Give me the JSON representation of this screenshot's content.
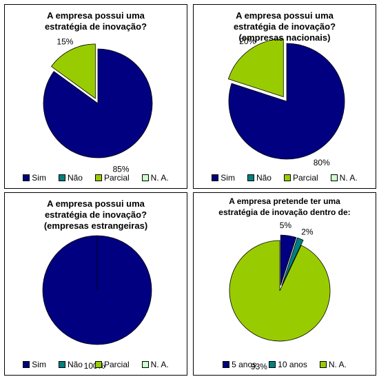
{
  "chart_data": [
    {
      "type": "pie",
      "title": "A empresa possui uma estratégia de inovação?",
      "title_lines": [
        "A empresa possui uma",
        "estratégia de inovação?"
      ],
      "categories": [
        "Sim",
        "Não",
        "Parcial",
        "N. A."
      ],
      "values": [
        85,
        0,
        15,
        0
      ],
      "data_labels": [
        "85%",
        "",
        "15%",
        ""
      ],
      "colors": [
        "#000080",
        "#008080",
        "#99CC00",
        "#CCFFCC"
      ],
      "exploded": [
        false,
        false,
        true,
        false
      ],
      "legend": "bottom"
    },
    {
      "type": "pie",
      "title": "A empresa possui uma estratégia de inovação? (empresas nacionais)",
      "title_lines": [
        "A empresa possui uma",
        "estratégia de inovação?",
        "(empresas nacionais)"
      ],
      "categories": [
        "Sim",
        "Não",
        "Parcial",
        "N. A."
      ],
      "values": [
        80,
        0,
        20,
        0
      ],
      "data_labels": [
        "80%",
        "",
        "20%",
        ""
      ],
      "colors": [
        "#000080",
        "#008080",
        "#99CC00",
        "#CCFFCC"
      ],
      "exploded": [
        false,
        false,
        true,
        false
      ],
      "legend": "bottom"
    },
    {
      "type": "pie",
      "title": "A empresa possui uma estratégia de inovação? (empresas estrangeiras)",
      "title_lines": [
        "A empresa possui uma",
        "estratégia de inovação?",
        "(empresas estrangeiras)"
      ],
      "categories": [
        "Sim",
        "Não",
        "Parcial",
        "N. A."
      ],
      "values": [
        100,
        0,
        0,
        0
      ],
      "data_labels": [
        "100%",
        "",
        "",
        ""
      ],
      "colors": [
        "#000080",
        "#008080",
        "#99CC00",
        "#CCFFCC"
      ],
      "exploded": [
        false,
        false,
        false,
        false
      ],
      "legend": "bottom"
    },
    {
      "type": "pie",
      "title": "A empresa pretende ter uma estratégia de inovação dentro de:",
      "title_lines": [
        "A empresa pretende ter uma",
        "estratégia de inovação dentro de:"
      ],
      "categories": [
        "5 anos",
        "10 anos",
        "N. A."
      ],
      "values": [
        5,
        2,
        93
      ],
      "data_labels": [
        "5%",
        "2%",
        "93%"
      ],
      "colors": [
        "#000080",
        "#008080",
        "#99CC00"
      ],
      "exploded": [
        true,
        true,
        false
      ],
      "legend": "bottom"
    }
  ]
}
